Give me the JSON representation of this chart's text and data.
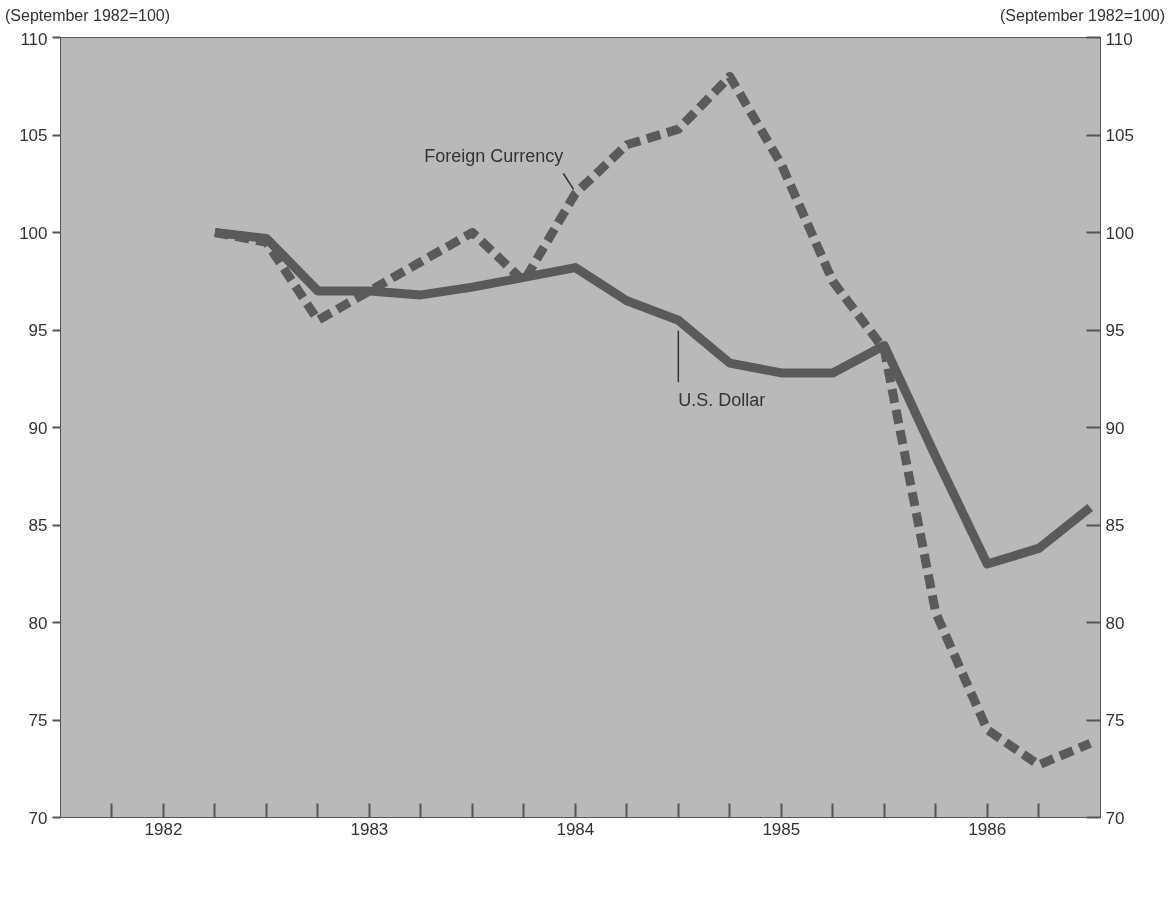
{
  "chart_data": {
    "type": "line",
    "ylabel": "(September 1982=100)",
    "y2label": "(September 1982=100)",
    "x": [
      1982.75,
      1983,
      1983.25,
      1983.5,
      1983.75,
      1984,
      1984.25,
      1984.5,
      1984.75,
      1985,
      1985.25,
      1985.5,
      1985.75,
      1986,
      1986.25,
      1986.5,
      1986.75,
      1987
    ],
    "series": [
      {
        "name": "U.S. Dollar",
        "color": "#5a5a5a",
        "line_style": "solid",
        "values": [
          100,
          99.7,
          97,
          97,
          96.8,
          97.2,
          97.7,
          98.2,
          96.5,
          95.5,
          93.3,
          92.8,
          92.8,
          94.2,
          88.5,
          83,
          83.8,
          85.9
        ]
      },
      {
        "name": "Foreign Currency",
        "color": "#5a5a5a",
        "line_style": "dashed",
        "values": [
          100,
          99.5,
          95.5,
          97,
          98.5,
          100,
          97.5,
          102,
          104.5,
          105.3,
          108,
          103.5,
          97.5,
          94,
          80.5,
          74.5,
          72.7,
          73.8
        ]
      }
    ],
    "xlim": [
      1982,
      1987.05
    ],
    "xticks": [
      {
        "value": 1982.25,
        "label": null
      },
      {
        "value": 1982.5,
        "label": "1982"
      },
      {
        "value": 1982.75,
        "label": null
      },
      {
        "value": 1983,
        "label": null
      },
      {
        "value": 1983.25,
        "label": null
      },
      {
        "value": 1983.5,
        "label": "1983"
      },
      {
        "value": 1983.75,
        "label": null
      },
      {
        "value": 1984,
        "label": null
      },
      {
        "value": 1984.25,
        "label": null
      },
      {
        "value": 1984.5,
        "label": "1984"
      },
      {
        "value": 1984.75,
        "label": null
      },
      {
        "value": 1985,
        "label": null
      },
      {
        "value": 1985.25,
        "label": null
      },
      {
        "value": 1985.5,
        "label": "1985"
      },
      {
        "value": 1985.75,
        "label": null
      },
      {
        "value": 1986,
        "label": null
      },
      {
        "value": 1986.25,
        "label": null
      },
      {
        "value": 1986.5,
        "label": "1986"
      },
      {
        "value": 1986.75,
        "label": null
      }
    ],
    "ylim": [
      70,
      110
    ],
    "yticks": [
      70,
      75,
      80,
      85,
      90,
      95,
      100,
      105,
      110
    ],
    "y2lim": [
      70,
      110
    ],
    "y2ticks": [
      70,
      75,
      80,
      85,
      90,
      95,
      100,
      105,
      110
    ],
    "grid": false,
    "marker": "none"
  }
}
